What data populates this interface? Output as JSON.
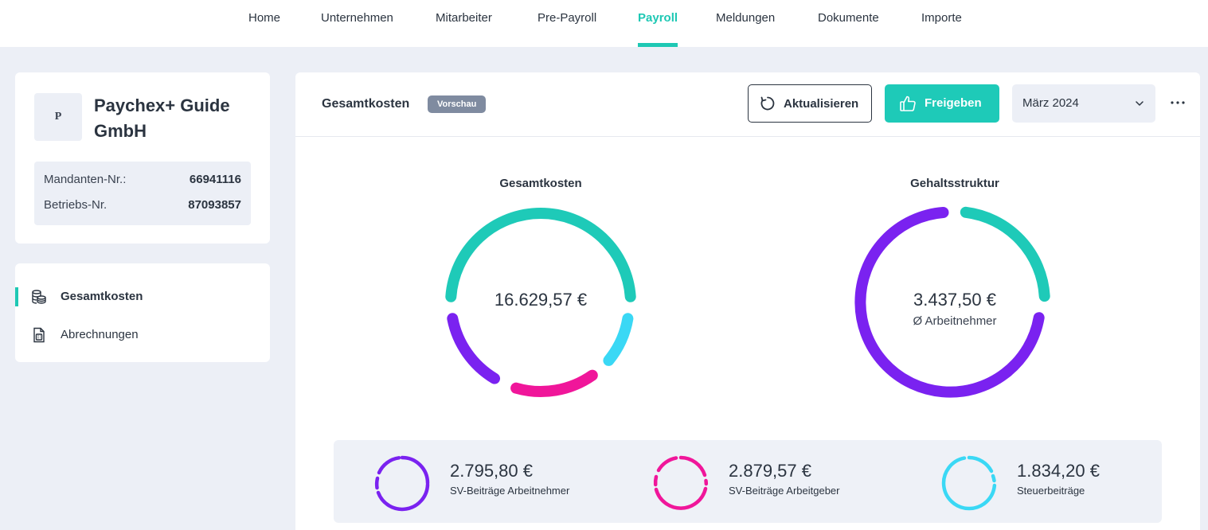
{
  "nav": {
    "items": [
      {
        "label": "Home",
        "active": false
      },
      {
        "label": "Unternehmen",
        "active": false
      },
      {
        "label": "Mitarbeiter",
        "active": false
      },
      {
        "label": "Pre-Payroll",
        "active": false
      },
      {
        "label": "Payroll",
        "active": true
      },
      {
        "label": "Meldungen",
        "active": false
      },
      {
        "label": "Dokumente",
        "active": false
      },
      {
        "label": "Importe",
        "active": false
      }
    ]
  },
  "company": {
    "logo_letter": "P",
    "name": "Paychex+ Guide GmbH",
    "client_no_label": "Mandanten-Nr.:",
    "client_no": "66941116",
    "company_no_label": "Betriebs-Nr.",
    "company_no": "87093857"
  },
  "menu": {
    "items": [
      {
        "label": "Gesamtkosten",
        "icon": "coins-stack-icon",
        "active": true
      },
      {
        "label": "Abrechnungen",
        "icon": "document-calculator-icon",
        "active": false
      }
    ]
  },
  "main": {
    "title": "Gesamtkosten",
    "badge": "Vorschau",
    "refresh_label": "Aktualisieren",
    "approve_label": "Freigeben",
    "month": "März 2024"
  },
  "charts": {
    "total": {
      "title": "Gesamtkosten",
      "center_value": "16.629,57 €"
    },
    "salary": {
      "title": "Gehaltsstruktur",
      "center_value": "3.437,50 €",
      "center_sub": "Ø Arbeitnehmer"
    }
  },
  "stats": [
    {
      "value": "2.795,80 €",
      "label": "SV-Beiträge Arbeitnehmer",
      "color": "#7a22f0"
    },
    {
      "value": "2.879,57 €",
      "label": "SV-Beiträge Arbeitgeber",
      "color": "#f0169a"
    },
    {
      "value": "1.834,20 €",
      "label": "Steuerbeiträge",
      "color": "#3ad8f5"
    }
  ],
  "colors": {
    "accent": "#1ec8b4",
    "purple": "#7a22f0",
    "magenta": "#f0169a",
    "cyan": "#3ad8f5"
  }
}
